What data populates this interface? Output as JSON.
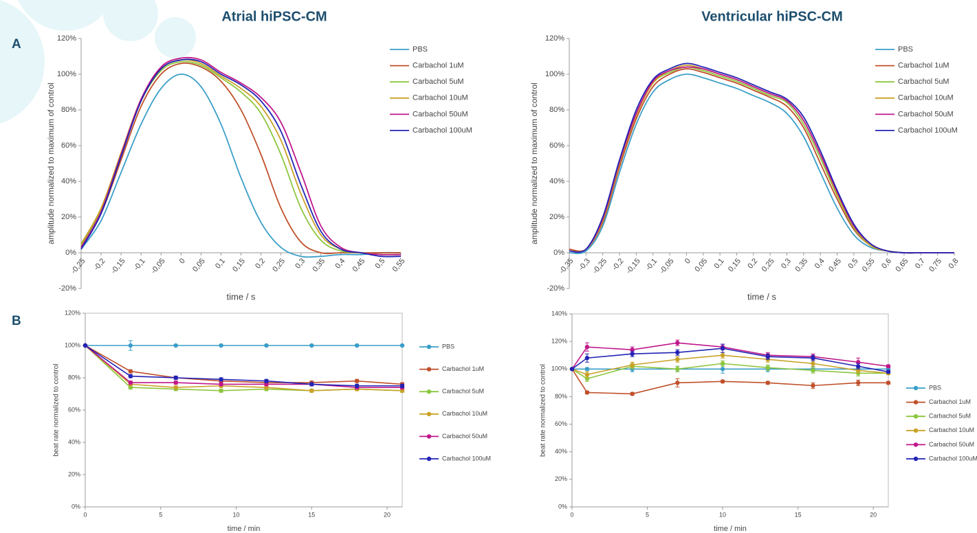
{
  "column_titles": [
    "Atrial hiPSC-CM",
    "Ventricular hiPSC-CM"
  ],
  "panel_labels": [
    "A",
    "B"
  ],
  "chart_data": [
    {
      "type": "line",
      "x_label": "time / s",
      "y_label": "amplitude normalized to maximum of control",
      "legend": "upper right",
      "markers": false,
      "grid": false,
      "xlim": [
        -0.25,
        0.55
      ],
      "ylim": [
        -20,
        120
      ],
      "xticks": [
        {
          "value": -0.25,
          "label": "-0,25"
        },
        {
          "value": -0.2,
          "label": "-0,2"
        },
        {
          "value": -0.15,
          "label": "-0,15"
        },
        {
          "value": -0.1,
          "label": "-0,1"
        },
        {
          "value": -0.05,
          "label": "-0,05"
        },
        0,
        {
          "value": 0.05,
          "label": "0,05"
        },
        {
          "value": 0.1,
          "label": "0,1"
        },
        {
          "value": 0.15,
          "label": "0,15"
        },
        {
          "value": 0.2,
          "label": "0,2"
        },
        {
          "value": 0.25,
          "label": "0,25"
        },
        {
          "value": 0.3,
          "label": "0,3"
        },
        {
          "value": 0.35,
          "label": "0,35"
        },
        {
          "value": 0.4,
          "label": "0,4"
        },
        {
          "value": 0.45,
          "label": "0,45"
        },
        {
          "value": 0.5,
          "label": "0,5"
        },
        {
          "value": 0.55,
          "label": "0,55"
        }
      ],
      "yticks": [
        {
          "value": -20,
          "label": "-20%"
        },
        {
          "value": 0,
          "label": "0%"
        },
        {
          "value": 20,
          "label": "20%"
        },
        {
          "value": 40,
          "label": "40%"
        },
        {
          "value": 60,
          "label": "60%"
        },
        {
          "value": 80,
          "label": "80%"
        },
        {
          "value": 100,
          "label": "100%"
        },
        {
          "value": 120,
          "label": "120%"
        }
      ],
      "x": [
        -0.25,
        -0.2,
        -0.15,
        -0.1,
        -0.05,
        0,
        0.05,
        0.1,
        0.15,
        0.2,
        0.25,
        0.3,
        0.35,
        0.4,
        0.45,
        0.5,
        0.55
      ],
      "series": [
        {
          "name": "PBS",
          "color": "#3a9ec8",
          "values": [
            2,
            18,
            45,
            72,
            92,
            100,
            93,
            72,
            42,
            17,
            3,
            -2,
            -2,
            -1,
            -1,
            0,
            0
          ]
        },
        {
          "name": "Carbachol 1uM",
          "color": "#c0502a",
          "values": [
            3,
            22,
            52,
            82,
            100,
            106,
            104,
            96,
            80,
            55,
            25,
            6,
            0,
            0,
            0,
            0,
            0
          ]
        },
        {
          "name": "Carbachol 5uM",
          "color": "#8cc63e",
          "values": [
            4,
            24,
            55,
            85,
            102,
            107,
            105,
            98,
            90,
            78,
            55,
            25,
            7,
            1,
            0,
            -1,
            -1
          ]
        },
        {
          "name": "Carbachol 10uM",
          "color": "#c9a227",
          "values": [
            5,
            25,
            56,
            86,
            103,
            108,
            106,
            99,
            92,
            82,
            63,
            33,
            10,
            2,
            0,
            -1,
            -1
          ]
        },
        {
          "name": "Carbachol 50uM",
          "color": "#c0168a",
          "values": [
            3,
            23,
            55,
            86,
            104,
            109,
            108,
            101,
            95,
            87,
            73,
            45,
            15,
            3,
            0,
            -1,
            -1
          ]
        },
        {
          "name": "Carbachol 100uM",
          "color": "#2323b5",
          "values": [
            2,
            22,
            54,
            85,
            103,
            108,
            107,
            100,
            94,
            85,
            68,
            38,
            12,
            2,
            0,
            -2,
            -2
          ]
        }
      ]
    },
    {
      "type": "line",
      "x_label": "time / s",
      "y_label": "amplitude normalized to maximum of control",
      "legend": "upper right",
      "markers": false,
      "grid": false,
      "xlim": [
        -0.35,
        0.8
      ],
      "ylim": [
        -20,
        120
      ],
      "xticks": [
        {
          "value": -0.35,
          "label": "-0,35"
        },
        {
          "value": -0.3,
          "label": "-0,3"
        },
        {
          "value": -0.25,
          "label": "-0,25"
        },
        {
          "value": -0.2,
          "label": "-0,2"
        },
        {
          "value": -0.15,
          "label": "-0,15"
        },
        {
          "value": -0.1,
          "label": "-0,1"
        },
        {
          "value": -0.05,
          "label": "-0,05"
        },
        0,
        {
          "value": 0.05,
          "label": "0,05"
        },
        {
          "value": 0.1,
          "label": "0,1"
        },
        {
          "value": 0.15,
          "label": "0,15"
        },
        {
          "value": 0.2,
          "label": "0,2"
        },
        {
          "value": 0.25,
          "label": "0,25"
        },
        {
          "value": 0.3,
          "label": "0,3"
        },
        {
          "value": 0.35,
          "label": "0,35"
        },
        {
          "value": 0.4,
          "label": "0,4"
        },
        {
          "value": 0.45,
          "label": "0,45"
        },
        {
          "value": 0.5,
          "label": "0,5"
        },
        {
          "value": 0.55,
          "label": "0,55"
        },
        {
          "value": 0.6,
          "label": "0,6"
        },
        {
          "value": 0.65,
          "label": "0,65"
        },
        {
          "value": 0.7,
          "label": "0,7"
        },
        {
          "value": 0.75,
          "label": "0,75"
        },
        {
          "value": 0.8,
          "label": "0,8"
        }
      ],
      "yticks": [
        {
          "value": -20,
          "label": "-20%"
        },
        {
          "value": 0,
          "label": "0%"
        },
        {
          "value": 20,
          "label": "20%"
        },
        {
          "value": 40,
          "label": "40%"
        },
        {
          "value": 60,
          "label": "60%"
        },
        {
          "value": 80,
          "label": "80%"
        },
        {
          "value": 100,
          "label": "100%"
        },
        {
          "value": 120,
          "label": "120%"
        }
      ],
      "x": [
        -0.35,
        -0.3,
        -0.25,
        -0.2,
        -0.15,
        -0.1,
        -0.05,
        0,
        0.05,
        0.1,
        0.15,
        0.2,
        0.25,
        0.3,
        0.35,
        0.4,
        0.45,
        0.5,
        0.55,
        0.6,
        0.65,
        0.7,
        0.75,
        0.8
      ],
      "series": [
        {
          "name": "PBS",
          "color": "#3a9ec8",
          "values": [
            0,
            1,
            15,
            45,
            72,
            90,
            97,
            100,
            98,
            95,
            92,
            88,
            84,
            78,
            65,
            45,
            25,
            10,
            3,
            1,
            0,
            0,
            0,
            0
          ]
        },
        {
          "name": "Carbachol 1uM",
          "color": "#c0502a",
          "values": [
            2,
            2,
            17,
            48,
            75,
            93,
            100,
            103,
            101,
            98,
            95,
            91,
            87,
            82,
            70,
            50,
            30,
            13,
            4,
            1,
            0,
            0,
            0,
            0
          ]
        },
        {
          "name": "Carbachol 5uM",
          "color": "#8cc63e",
          "values": [
            1,
            2,
            18,
            50,
            77,
            95,
            101,
            104,
            102,
            99,
            96,
            92,
            88,
            84,
            72,
            53,
            32,
            14,
            4,
            1,
            0,
            0,
            0,
            0
          ]
        },
        {
          "name": "Carbachol 10uM",
          "color": "#c9a227",
          "values": [
            1,
            2,
            18,
            50,
            77,
            95,
            102,
            105,
            103,
            100,
            97,
            93,
            89,
            85,
            74,
            55,
            33,
            15,
            4,
            1,
            0,
            0,
            0,
            0
          ]
        },
        {
          "name": "Carbachol 50uM",
          "color": "#c0168a",
          "values": [
            1,
            2,
            19,
            51,
            78,
            96,
            102,
            104,
            103,
            100,
            97,
            93,
            89,
            85,
            74,
            55,
            34,
            15,
            5,
            1,
            0,
            0,
            0,
            0
          ]
        },
        {
          "name": "Carbachol 100uM",
          "color": "#2323b5",
          "values": [
            1,
            2,
            20,
            52,
            80,
            97,
            103,
            106,
            104,
            101,
            98,
            94,
            90,
            86,
            76,
            57,
            35,
            16,
            5,
            1,
            0,
            0,
            0,
            0
          ]
        }
      ]
    },
    {
      "type": "line",
      "x_label": "time / min",
      "y_label": "beat rate normalized to control",
      "legend": "right",
      "markers": true,
      "grid": false,
      "xlim": [
        0,
        21
      ],
      "ylim": [
        0,
        120
      ],
      "xticks": [
        0,
        5,
        10,
        15,
        20
      ],
      "yticks": [
        {
          "value": 0,
          "label": "0%"
        },
        {
          "value": 20,
          "label": "20%"
        },
        {
          "value": 40,
          "label": "40%"
        },
        {
          "value": 60,
          "label": "60%"
        },
        {
          "value": 80,
          "label": "80%"
        },
        {
          "value": 100,
          "label": "100%"
        },
        {
          "value": 120,
          "label": "120%"
        }
      ],
      "x": [
        0,
        3,
        6,
        9,
        12,
        15,
        18,
        21
      ],
      "series": [
        {
          "name": "PBS",
          "color": "#3a9ec8",
          "values": [
            100,
            100,
            100,
            100,
            100,
            100,
            100,
            100
          ],
          "errors": [
            0,
            3,
            0.5,
            0.5,
            0.5,
            0.5,
            0.5,
            0.5
          ]
        },
        {
          "name": "Carbachol 1uM",
          "color": "#c0502a",
          "values": [
            100,
            84,
            80,
            78,
            77,
            77,
            78,
            76
          ],
          "errors": [
            0,
            1,
            1,
            1,
            1,
            1,
            1,
            1
          ]
        },
        {
          "name": "Carbachol 5uM",
          "color": "#8cc63e",
          "values": [
            100,
            74,
            73,
            72,
            73,
            72,
            73,
            72
          ],
          "errors": [
            0,
            1,
            1,
            1,
            1,
            1,
            1,
            1
          ]
        },
        {
          "name": "Carbachol 10uM",
          "color": "#c9a227",
          "values": [
            100,
            76,
            74,
            75,
            74,
            72,
            73,
            72
          ],
          "errors": [
            0,
            1,
            1,
            1,
            1,
            1,
            1,
            1
          ]
        },
        {
          "name": "Carbachol 50uM",
          "color": "#c0168a",
          "values": [
            100,
            77,
            77,
            76,
            76,
            76,
            74,
            74
          ],
          "errors": [
            0,
            1,
            1,
            1,
            1,
            1,
            1,
            1
          ]
        },
        {
          "name": "Carbachol 100uM",
          "color": "#2323b5",
          "values": [
            100,
            81,
            80,
            79,
            78,
            76,
            75,
            75
          ],
          "errors": [
            0,
            1,
            1,
            1,
            1,
            1,
            1,
            1
          ]
        }
      ]
    },
    {
      "type": "line",
      "x_label": "time / min",
      "y_label": "beat rate normalized to control",
      "legend": "right",
      "markers": true,
      "grid": false,
      "xlim": [
        0,
        21
      ],
      "ylim": [
        0,
        140
      ],
      "xticks": [
        0,
        5,
        10,
        15,
        20
      ],
      "yticks": [
        {
          "value": 0,
          "label": "0%"
        },
        {
          "value": 20,
          "label": "20%"
        },
        {
          "value": 40,
          "label": "40%"
        },
        {
          "value": 60,
          "label": "60%"
        },
        {
          "value": 80,
          "label": "80%"
        },
        {
          "value": 100,
          "label": "100%"
        },
        {
          "value": 120,
          "label": "120%"
        },
        {
          "value": 140,
          "label": "140%"
        }
      ],
      "x": [
        0,
        1,
        4,
        7,
        10,
        13,
        16,
        19,
        21
      ],
      "series": [
        {
          "name": "PBS",
          "color": "#3a9ec8",
          "values": [
            100,
            100,
            100,
            100,
            100,
            100,
            100,
            100,
            100
          ],
          "errors": [
            0,
            1,
            2,
            2,
            3,
            2,
            2,
            1,
            1
          ]
        },
        {
          "name": "Carbachol 1uM",
          "color": "#c0502a",
          "values": [
            100,
            83,
            82,
            90,
            91,
            90,
            88,
            90,
            90
          ],
          "errors": [
            0,
            1,
            1,
            3,
            1,
            1,
            2,
            2,
            1
          ]
        },
        {
          "name": "Carbachol 5uM",
          "color": "#8cc63e",
          "values": [
            100,
            93,
            102,
            100,
            104,
            101,
            99,
            97,
            97
          ],
          "errors": [
            0,
            2,
            2,
            2,
            2,
            2,
            2,
            2,
            1
          ]
        },
        {
          "name": "Carbachol 10uM",
          "color": "#c9a227",
          "values": [
            100,
            96,
            103,
            107,
            110,
            107,
            104,
            99,
            97
          ],
          "errors": [
            0,
            2,
            2,
            2,
            2,
            2,
            2,
            2,
            1
          ]
        },
        {
          "name": "Carbachol 50uM",
          "color": "#c0168a",
          "values": [
            100,
            116,
            114,
            119,
            116,
            110,
            109,
            105,
            102
          ],
          "errors": [
            0,
            3,
            2,
            2,
            2,
            2,
            2,
            3,
            1
          ]
        },
        {
          "name": "Carbachol 100uM",
          "color": "#2323b5",
          "values": [
            100,
            108,
            111,
            112,
            115,
            109,
            108,
            102,
            98
          ],
          "errors": [
            0,
            3,
            2,
            2,
            3,
            2,
            2,
            2,
            1
          ]
        }
      ]
    }
  ]
}
